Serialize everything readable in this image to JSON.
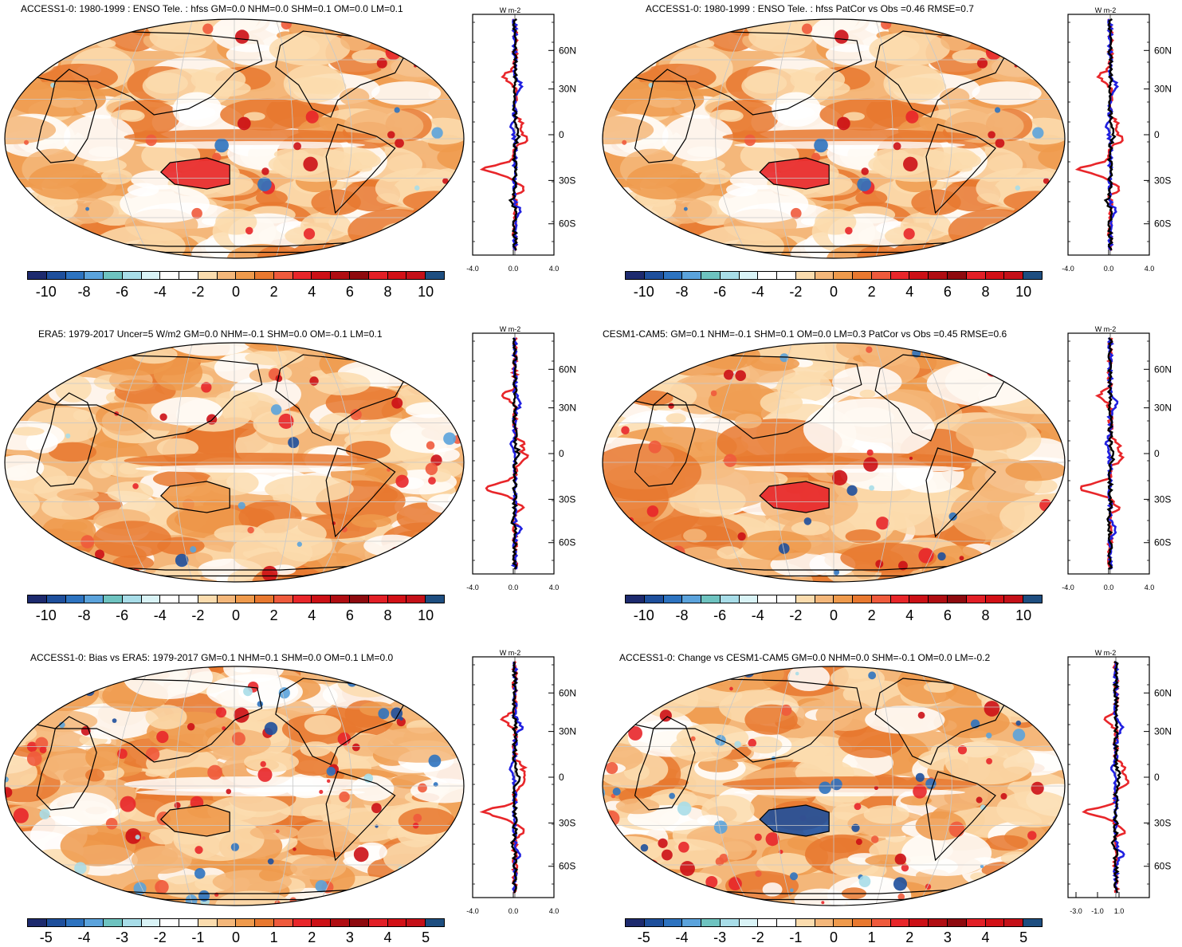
{
  "palette": [
    "#1d2a6e",
    "#1e4f9c",
    "#2d73c0",
    "#5ba3dc",
    "#6ec3c0",
    "#a8dde8",
    "#d9f3f6",
    "#ffffff",
    "#ffffff",
    "#fbdcae",
    "#f4b77a",
    "#ef9a4c",
    "#e8782f",
    "#ef5a3c",
    "#e8262a",
    "#cc1016",
    "#b00d12",
    "#8e0a0e",
    "#e21f26",
    "#d21016",
    "#c41018",
    "#1e4e80"
  ],
  "panels": [
    {
      "id": "p1",
      "title": "ACCESS1-0: 1980-1999 : ENSO Tele. : hfss GM=0.0 NHM=0.0 SHM=0.1 OM=0.0 LM=0.1",
      "cb_labels": [
        "-10",
        "-8",
        "-6",
        "-4",
        "-2",
        "0",
        "2",
        "4",
        "6",
        "8",
        "10"
      ],
      "side_ticks": [
        "-4.0",
        "0.0",
        "4.0"
      ],
      "lat_labels": [
        "60N",
        "30N",
        "0",
        "30S",
        "60S"
      ],
      "unit": "W m-2"
    },
    {
      "id": "p2",
      "title": "ACCESS1-0: 1980-1999 : ENSO Tele. : hfss PatCor vs Obs =0.46 RMSE=0.7",
      "cb_labels": [
        "-10",
        "-8",
        "-6",
        "-4",
        "-2",
        "0",
        "2",
        "4",
        "6",
        "8",
        "10"
      ],
      "side_ticks": [
        "-4.0",
        "0.0",
        "4.0"
      ],
      "lat_labels": [
        "60N",
        "30N",
        "0",
        "30S",
        "60S"
      ],
      "unit": "W m-2"
    },
    {
      "id": "p3",
      "title": "ERA5: 1979-2017 Uncer=5 W/m2 GM=0.0 NHM=-0.1 SHM=0.0 OM=-0.1 LM=0.1",
      "cb_labels": [
        "-10",
        "-8",
        "-6",
        "-4",
        "-2",
        "0",
        "2",
        "4",
        "6",
        "8",
        "10"
      ],
      "side_ticks": [
        "-4.0",
        "0.0",
        "4.0"
      ],
      "lat_labels": [
        "60N",
        "30N",
        "0",
        "30S",
        "60S"
      ],
      "unit": "W m-2"
    },
    {
      "id": "p4",
      "title": "CESM1-CAM5: GM=0.1 NHM=-0.1 SHM=0.1 OM=0.0 LM=0.3 PatCor vs Obs =0.45 RMSE=0.6",
      "cb_labels": [
        "-10",
        "-8",
        "-6",
        "-4",
        "-2",
        "0",
        "2",
        "4",
        "6",
        "8",
        "10"
      ],
      "side_ticks": [
        "-4.0",
        "0.0",
        "4.0"
      ],
      "lat_labels": [
        "60N",
        "30N",
        "0",
        "30S",
        "60S"
      ],
      "unit": "W m-2"
    },
    {
      "id": "p5",
      "title": "ACCESS1-0: Bias vs ERA5: 1979-2017 GM=0.1 NHM=0.1 SHM=0.0 OM=0.1 LM=0.0",
      "cb_labels": [
        "-5",
        "-4",
        "-3",
        "-2",
        "-1",
        "0",
        "1",
        "2",
        "3",
        "4",
        "5"
      ],
      "side_ticks": [
        "-4.0",
        "0.0",
        "4.0"
      ],
      "lat_labels": [
        "60N",
        "30N",
        "0",
        "30S",
        "60S"
      ],
      "unit": "W m-2"
    },
    {
      "id": "p6",
      "title": "ACCESS1-0: Change vs CESM1-CAM5 GM=0.0 NHM=0.0 SHM=-0.1 OM=0.0 LM=-0.2",
      "cb_labels": [
        "-5",
        "-4",
        "-3",
        "-2",
        "-1",
        "0",
        "1",
        "2",
        "3",
        "4",
        "5"
      ],
      "side_ticks": [
        "-3.0",
        "-1.0",
        "1.0"
      ],
      "lat_labels": [
        "60N",
        "30N",
        "0",
        "30S",
        "60S"
      ],
      "unit": "W m-2"
    }
  ]
}
